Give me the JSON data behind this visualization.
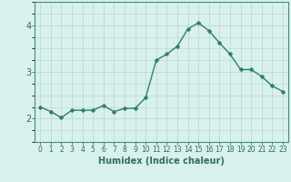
{
  "x": [
    0,
    1,
    2,
    3,
    4,
    5,
    6,
    7,
    8,
    9,
    10,
    11,
    12,
    13,
    14,
    15,
    16,
    17,
    18,
    19,
    20,
    21,
    22,
    23
  ],
  "y": [
    2.25,
    2.15,
    2.02,
    2.18,
    2.18,
    2.18,
    2.28,
    2.15,
    2.22,
    2.22,
    2.45,
    3.25,
    3.38,
    3.55,
    3.92,
    4.05,
    3.88,
    3.62,
    3.38,
    3.05,
    3.05,
    2.9,
    2.7,
    2.58
  ],
  "line_color": "#2e7d6e",
  "marker": "D",
  "marker_size": 2.5,
  "line_width": 1.0,
  "bg_color": "#d8f0ee",
  "grid_color": "#b8d4d0",
  "xlabel": "Humidex (Indice chaleur)",
  "xlabel_fontsize": 7,
  "ylim": [
    1.5,
    4.5
  ],
  "xlim": [
    -0.5,
    23.5
  ],
  "yticks": [
    2,
    3,
    4
  ],
  "ytick_fontsize": 7,
  "xtick_fontsize": 5.5,
  "tick_color": "#2e6e62",
  "spine_color": "#4a8a7e"
}
